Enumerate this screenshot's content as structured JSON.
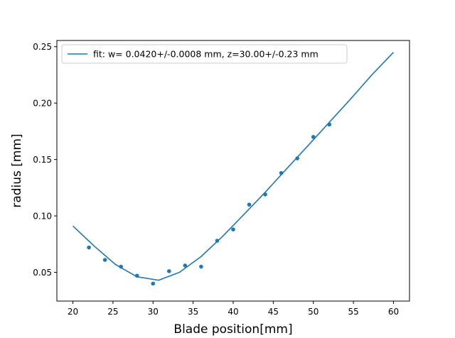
{
  "chart_data": {
    "type": "scatter",
    "title": "",
    "xlabel": "Blade position[mm]",
    "ylabel": "radius [mm]",
    "xlim": [
      18.0,
      62.0
    ],
    "ylim": [
      0.0245,
      0.2555
    ],
    "xticks": [
      20,
      25,
      30,
      35,
      40,
      45,
      50,
      55,
      60
    ],
    "yticks": [
      0.05,
      0.1,
      0.15,
      0.2,
      0.25
    ],
    "xtick_labels": [
      "20",
      "25",
      "30",
      "35",
      "40",
      "45",
      "50",
      "55",
      "60"
    ],
    "ytick_labels": [
      "0.05",
      "0.10",
      "0.15",
      "0.20",
      "0.25"
    ],
    "grid": false,
    "legend_position": "top-left",
    "color": "#1f77b4",
    "series": [
      {
        "name": "",
        "kind": "scatter",
        "x": [
          22,
          24,
          26,
          28,
          30,
          32,
          34,
          36,
          38,
          40,
          42,
          44,
          46,
          48,
          50,
          52
        ],
        "y": [
          0.072,
          0.061,
          0.055,
          0.047,
          0.04,
          0.051,
          0.056,
          0.055,
          0.078,
          0.088,
          0.11,
          0.119,
          0.138,
          0.151,
          0.17,
          0.181
        ]
      },
      {
        "name": "fit: w= 0.0420+/-0.0008 mm, z=30.00+/-0.23 mm",
        "kind": "line",
        "x": [
          20.0,
          22.7,
          25.3,
          28.0,
          30.7,
          33.3,
          36.0,
          38.7,
          41.3,
          44.0,
          46.7,
          49.3,
          52.0,
          54.7,
          57.3,
          60.0
        ],
        "y": [
          0.091,
          0.073,
          0.057,
          0.046,
          0.043,
          0.05,
          0.064,
          0.082,
          0.101,
          0.121,
          0.142,
          0.162,
          0.183,
          0.204,
          0.225,
          0.245
        ]
      }
    ]
  }
}
